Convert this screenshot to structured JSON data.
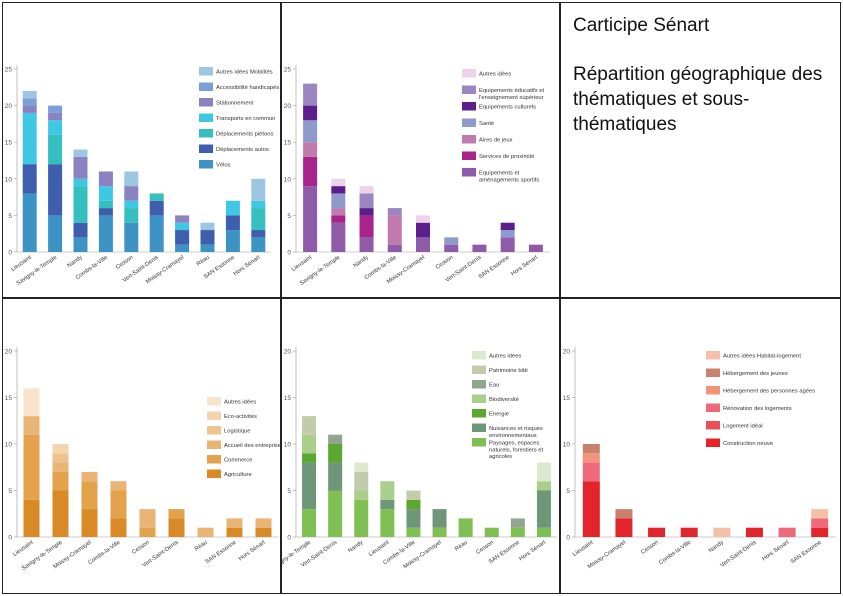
{
  "page": {
    "title": "Carticipe Sénart",
    "subtitle": "Répartition géographique des thématiques et sous-thématiques"
  },
  "chart_data": [
    {
      "id": "mobilites",
      "type": "bar",
      "stacked": true,
      "ylim": [
        0,
        25
      ],
      "yticks": [
        0,
        5,
        10,
        15,
        20,
        25
      ],
      "categories": [
        "Lieusaint",
        "Savigny-le-Temple",
        "Nandy",
        "Combs-la-Ville",
        "Cesson",
        "Vert-Saint-Denis",
        "Moissy-Cramayel",
        "Réau",
        "SAN Essonne",
        "Hors Sénart"
      ],
      "legend_order": [
        6,
        5,
        4,
        3,
        2,
        1,
        0
      ],
      "series": [
        {
          "name": "Vélos",
          "color": "#3d93c4",
          "values": [
            8,
            5,
            2,
            5,
            4,
            5,
            1,
            1,
            3,
            2
          ]
        },
        {
          "name": "Déplacements autos",
          "color": "#3f5fae",
          "values": [
            4,
            7,
            2,
            1,
            0,
            2,
            2,
            2,
            2,
            1
          ]
        },
        {
          "name": "Déplacements piétons",
          "color": "#35bfbf",
          "values": [
            0,
            4,
            5,
            1,
            2,
            1,
            0,
            0,
            0,
            3
          ]
        },
        {
          "name": "Transports en commun",
          "color": "#3fc8e4",
          "values": [
            7,
            2,
            1,
            2,
            1,
            0,
            1,
            0,
            2,
            1
          ]
        },
        {
          "name": "Stationnement",
          "color": "#8b82c2",
          "values": [
            1,
            1,
            3,
            2,
            2,
            0,
            1,
            0,
            0,
            0
          ]
        },
        {
          "name": "Accessibilité handicapés",
          "color": "#7b9fd6",
          "values": [
            1,
            1,
            0,
            0,
            0,
            0,
            0,
            0,
            0,
            0
          ]
        },
        {
          "name": "Autres idées Mobilités",
          "color": "#9cc6e2",
          "values": [
            1,
            0,
            1,
            0,
            2,
            0,
            0,
            1,
            0,
            3
          ]
        }
      ]
    },
    {
      "id": "equipements",
      "type": "bar",
      "stacked": true,
      "ylim": [
        0,
        25
      ],
      "yticks": [
        0,
        5,
        10,
        15,
        20,
        25
      ],
      "categories": [
        "Lieusaint",
        "Savigny-le-Temple",
        "Nandy",
        "Combs-la-Ville",
        "Moissy-Cramayel",
        "Cesson",
        "Vert-Saint-Denis",
        "SAN Essonne",
        "Hors Sénart"
      ],
      "legend_order": [
        6,
        5,
        4,
        3,
        2,
        1,
        0
      ],
      "series": [
        {
          "name": "Equipements et aménagements sportifs",
          "color": "#8f5aa8",
          "values": [
            9,
            4,
            2,
            1,
            2,
            1,
            1,
            2,
            1
          ]
        },
        {
          "name": "Services de proximité",
          "color": "#a8238a",
          "values": [
            4,
            1,
            3,
            0,
            0,
            0,
            0,
            0,
            0
          ]
        },
        {
          "name": "Aires de jeux",
          "color": "#c07aac",
          "values": [
            2,
            1,
            0,
            4,
            0,
            0,
            0,
            0,
            0
          ]
        },
        {
          "name": "Santé",
          "color": "#8f9acc",
          "values": [
            3,
            2,
            0,
            0,
            0,
            1,
            0,
            1,
            0
          ]
        },
        {
          "name": "Equipements culturels",
          "color": "#5c1e8a",
          "values": [
            2,
            1,
            1,
            0,
            2,
            0,
            0,
            1,
            0
          ]
        },
        {
          "name": "Equipements éducatifs et l'enseignement supérieur",
          "color": "#9b86c2",
          "values": [
            3,
            0,
            2,
            1,
            0,
            0,
            0,
            0,
            0
          ]
        },
        {
          "name": "Autres idées",
          "color": "#ecd3ea",
          "values": [
            0,
            1,
            1,
            0,
            1,
            0,
            0,
            0,
            0
          ]
        }
      ]
    },
    {
      "id": "economie",
      "type": "bar",
      "stacked": true,
      "ylim": [
        0,
        20
      ],
      "yticks": [
        0,
        5,
        10,
        15,
        20
      ],
      "categories": [
        "Lieusaint",
        "Savigny-le-Temple",
        "Moissy-Cramayel",
        "Combs-la-Ville",
        "Cesson",
        "Vert-Saint-Denis",
        "Réau",
        "SAN Essonne",
        "Hors Sénart"
      ],
      "legend_order": [
        5,
        4,
        3,
        2,
        1,
        0
      ],
      "series": [
        {
          "name": "Agriculture",
          "color": "#d98a27",
          "values": [
            4,
            5,
            3,
            2,
            0,
            2,
            0,
            1,
            1
          ]
        },
        {
          "name": "Commerce",
          "color": "#e3a24c",
          "values": [
            7,
            2,
            3,
            3,
            1,
            1,
            0,
            0,
            0
          ]
        },
        {
          "name": "Accueil des entreprises",
          "color": "#e9b577",
          "values": [
            2,
            1,
            1,
            1,
            2,
            0,
            1,
            1,
            1
          ]
        },
        {
          "name": "Logistique",
          "color": "#edc48e",
          "values": [
            0,
            1,
            0,
            0,
            0,
            0,
            0,
            0,
            0
          ]
        },
        {
          "name": "Eco-activités",
          "color": "#f2d4ad",
          "values": [
            0,
            1,
            0,
            0,
            0,
            0,
            0,
            0,
            0
          ]
        },
        {
          "name": "Autres idées",
          "color": "#f8e4cc",
          "values": [
            3,
            0,
            0,
            0,
            0,
            0,
            0,
            0,
            0
          ]
        }
      ]
    },
    {
      "id": "environnement",
      "type": "bar",
      "stacked": true,
      "ylim": [
        0,
        20
      ],
      "yticks": [
        0,
        5,
        10,
        15,
        20
      ],
      "categories": [
        "Savigny-le-Temple",
        "Vert-Saint-Denis",
        "Nandy",
        "Lieusaint",
        "Combs-la-Ville",
        "Moissy-Cramayel",
        "Réau",
        "Cesson",
        "SAN Essonne",
        "Hors Sénart"
      ],
      "legend_order": [
        6,
        5,
        4,
        3,
        2,
        1,
        0
      ],
      "series": [
        {
          "name": "Paysages, espaces naturels, forestiers et agricoles",
          "color": "#7fbf54",
          "values": [
            3,
            5,
            4,
            3,
            1,
            1,
            2,
            1,
            1,
            1
          ]
        },
        {
          "name": "Nuisances et risques environnementaux",
          "color": "#6f9678",
          "values": [
            5,
            3,
            0,
            1,
            2,
            2,
            0,
            0,
            0,
            4
          ]
        },
        {
          "name": "Energie",
          "color": "#5aa832",
          "values": [
            1,
            2,
            0,
            0,
            1,
            0,
            0,
            0,
            0,
            0
          ]
        },
        {
          "name": "Biodiversité",
          "color": "#a9cf8a",
          "values": [
            2,
            0,
            1,
            2,
            0,
            0,
            0,
            0,
            0,
            1
          ]
        },
        {
          "name": "Eau",
          "color": "#93a58e",
          "values": [
            0,
            1,
            0,
            0,
            0,
            0,
            0,
            0,
            1,
            0
          ]
        },
        {
          "name": "Patrimoine bâti",
          "color": "#c2ccab",
          "values": [
            2,
            0,
            2,
            0,
            1,
            0,
            0,
            0,
            0,
            0
          ]
        },
        {
          "name": "Autres idées",
          "color": "#dde9cf",
          "values": [
            0,
            0,
            1,
            0,
            0,
            0,
            0,
            0,
            0,
            2
          ]
        }
      ]
    },
    {
      "id": "habitat",
      "type": "bar",
      "stacked": true,
      "ylim": [
        0,
        20
      ],
      "yticks": [
        0,
        5,
        10,
        15,
        20
      ],
      "categories": [
        "Lieusaint",
        "Moissy-Cramayel",
        "Cesson",
        "Combs-la-Ville",
        "Nandy",
        "Vert-Saint-Denis",
        "Hors Sénart",
        "SAN Essonne"
      ],
      "legend_order": [
        5,
        4,
        3,
        2,
        1,
        0
      ],
      "series": [
        {
          "name": "Construction neuve",
          "color": "#e3242b",
          "values": [
            6,
            2,
            1,
            1,
            0,
            1,
            0,
            1
          ]
        },
        {
          "name": "Logement idéal",
          "color": "#ec4e56",
          "values": [
            0,
            0,
            0,
            0,
            0,
            0,
            0,
            0
          ]
        },
        {
          "name": "Rénovation des logements",
          "color": "#ee6a7a",
          "values": [
            2,
            0,
            0,
            0,
            0,
            0,
            1,
            1
          ]
        },
        {
          "name": "Hébergement des personnes agées",
          "color": "#f39379",
          "values": [
            1,
            0,
            0,
            0,
            0,
            0,
            0,
            0
          ]
        },
        {
          "name": "Hébergement des jeunes",
          "color": "#c9806c",
          "values": [
            1,
            1,
            0,
            0,
            0,
            0,
            0,
            0
          ]
        },
        {
          "name": "Autres idées Habitat-logement",
          "color": "#f6c0a8",
          "values": [
            0,
            0,
            0,
            0,
            1,
            0,
            0,
            1
          ]
        }
      ]
    }
  ]
}
